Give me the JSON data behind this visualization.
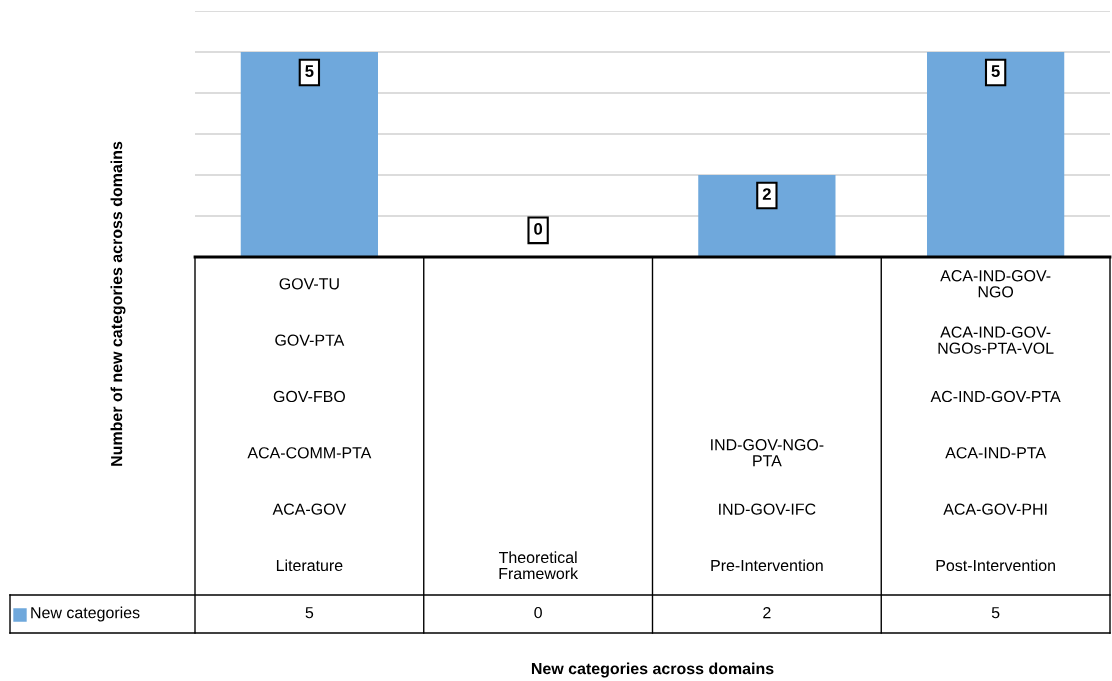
{
  "chart_data": {
    "type": "bar",
    "ylabel": "Number of new categories across domains",
    "categories": [
      "Literature",
      "Theoretical Framework",
      "Pre-Intervention",
      "Post-Intervention"
    ],
    "series": [
      {
        "name": "New categories",
        "color": "#6fa8dc",
        "values": [
          5,
          0,
          2,
          5
        ],
        "value_labels": [
          "5",
          "0",
          "2",
          "5"
        ]
      }
    ],
    "ylim": [
      0,
      6
    ],
    "yticks": [
      {
        "value": 0,
        "label": null
      },
      {
        "value": 1,
        "label": null
      },
      {
        "value": 2,
        "label": null
      },
      {
        "value": 3,
        "label": null
      },
      {
        "value": 4,
        "label": null
      },
      {
        "value": 5,
        "label": null
      },
      {
        "value": 6,
        "label": null
      }
    ],
    "grid": "y",
    "data_labels": true,
    "legend": "bottom left",
    "annotations": [
      "GOV-TU",
      "GOV-PTA",
      "GOV-FBO",
      "ACA-COMM-PTA",
      "ACA-GOV",
      "IND-GOV-NGO-PTA",
      "IND-GOV-IFC",
      "ACA-IND-GOV-NGO",
      "ACA-IND-GOV-NGOs-PTA-VOL",
      "AC-IND-GOV-PTA",
      "ACA-IND-PTA",
      "ACA-GOV-PHI",
      "New categories across domains"
    ]
  }
}
